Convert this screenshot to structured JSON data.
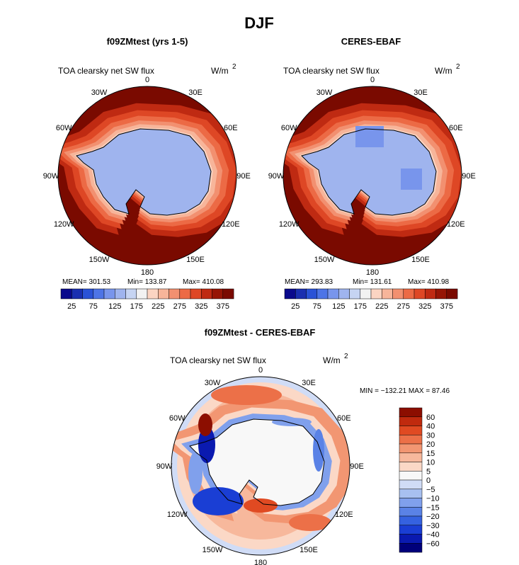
{
  "figure_title": "DJF",
  "colors": {
    "scale_abs": [
      "#0a0a8c",
      "#1a2fb0",
      "#2a52d6",
      "#4d74e6",
      "#7895ec",
      "#9fb4ee",
      "#c6d4f2",
      "#f2f2f2",
      "#fbd4c2",
      "#f7b59a",
      "#f29070",
      "#ec6a45",
      "#de4725",
      "#bf2a12",
      "#961505",
      "#7a0a00"
    ],
    "scale_diff": [
      "#00007a",
      "#0a1ab0",
      "#1a3ed4",
      "#3562e0",
      "#5a82e6",
      "#80a0ec",
      "#a8c0f0",
      "#d0dcf6",
      "#f8f8f8",
      "#fbd8c6",
      "#f7b89c",
      "#f29672",
      "#ec7048",
      "#e04a22",
      "#c02a0e",
      "#8c0e00"
    ],
    "ocean_abs": "#7a0a00",
    "land_abs": "#9fb4ee",
    "coast": "#000000"
  },
  "chart_data": [
    {
      "type": "polar-contour",
      "title": "f09ZMtest (yrs 1-5)",
      "field_label": "TOA clearsky net SW flux",
      "units_base": "W/m",
      "units_exp": "2",
      "lon_labels": [
        "0",
        "30E",
        "60E",
        "90E",
        "120E",
        "150E",
        "180",
        "150W",
        "120W",
        "90W",
        "60W",
        "30W"
      ],
      "stats_text": [
        "MEAN= 301.53",
        "Min= 133.87",
        "Max= 410.08"
      ],
      "stats": {
        "mean": 301.53,
        "min": 133.87,
        "max": 410.08
      },
      "levels": [
        25,
        50,
        75,
        100,
        125,
        150,
        175,
        200,
        225,
        250,
        275,
        300,
        325,
        350,
        375
      ],
      "colorbar_labels": [
        "25",
        "75",
        "125",
        "175",
        "225",
        "275",
        "325",
        "375"
      ]
    },
    {
      "type": "polar-contour",
      "title": "CERES-EBAF",
      "field_label": "TOA clearsky net SW flux",
      "units_base": "W/m",
      "units_exp": "2",
      "lon_labels": [
        "0",
        "30E",
        "60E",
        "90E",
        "120E",
        "150E",
        "180",
        "150W",
        "120W",
        "90W",
        "60W",
        "30W"
      ],
      "stats_text": [
        "MEAN= 293.83",
        "Min= 131.61",
        "Max= 410.98"
      ],
      "stats": {
        "mean": 293.83,
        "min": 131.61,
        "max": 410.98
      },
      "levels": [
        25,
        50,
        75,
        100,
        125,
        150,
        175,
        200,
        225,
        250,
        275,
        300,
        325,
        350,
        375
      ],
      "colorbar_labels": [
        "25",
        "75",
        "125",
        "175",
        "225",
        "275",
        "325",
        "375"
      ]
    },
    {
      "type": "polar-contour",
      "title": "f09ZMtest - CERES-EBAF",
      "field_label": "TOA clearsky net SW flux",
      "units_base": "W/m",
      "units_exp": "2",
      "lon_labels": [
        "0",
        "30E",
        "60E",
        "90E",
        "120E",
        "150E",
        "180",
        "150W",
        "120W",
        "90W",
        "60W",
        "30W"
      ],
      "minmax_text": "MIN = −132.21  MAX =  87.46",
      "stats": {
        "min": -132.21,
        "max": 87.46
      },
      "levels": [
        -60,
        -40,
        -30,
        -20,
        -15,
        -10,
        -5,
        0,
        5,
        10,
        15,
        20,
        30,
        40,
        60
      ],
      "colorbar_labels": [
        "60",
        "40",
        "30",
        "20",
        "15",
        "10",
        "5",
        "0",
        "−5",
        "−10",
        "−15",
        "−20",
        "−30",
        "−40",
        "−60"
      ]
    }
  ]
}
